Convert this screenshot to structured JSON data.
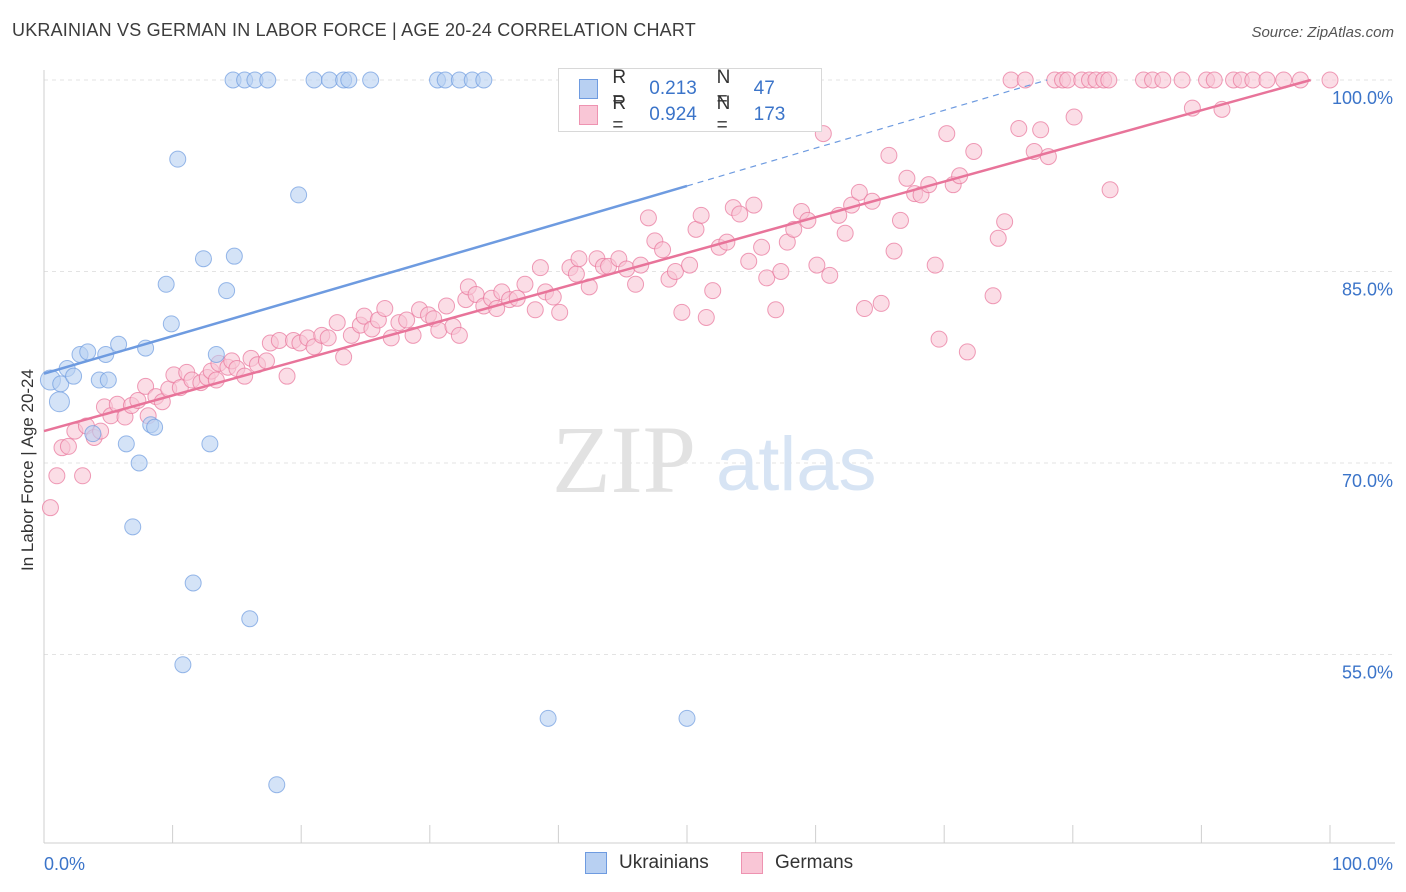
{
  "title": "UKRAINIAN VS GERMAN IN LABOR FORCE | AGE 20-24 CORRELATION CHART",
  "source": "Source: ZipAtlas.com",
  "watermark": {
    "zip": "ZIP",
    "atlas": "atlas"
  },
  "legend": {
    "r_label": "R =",
    "n_label": "N =",
    "rows": [
      {
        "r": "0.213",
        "n": "47",
        "fill": "#b8d0f2",
        "stroke": "#6e9be0"
      },
      {
        "r": "0.924",
        "n": "173",
        "fill": "#f9c6d6",
        "stroke": "#ee93b1"
      }
    ]
  },
  "bottom_legend": [
    {
      "label": "Ukrainians",
      "fill": "#b8d0f2",
      "stroke": "#6e9be0"
    },
    {
      "label": "Germans",
      "fill": "#f9c6d6",
      "stroke": "#ee93b1"
    }
  ],
  "chart_data": {
    "type": "scatter",
    "xlabel": "",
    "ylabel": "In Labor Force | Age 20-24",
    "xlim": [
      0,
      100
    ],
    "ylim": [
      40,
      101
    ],
    "x_tick_labels": [
      {
        "value": 0,
        "label": "0.0%"
      },
      {
        "value": 100,
        "label": "100.0%"
      }
    ],
    "y_tick_labels": [
      {
        "value": 100,
        "label": "100.0%"
      },
      {
        "value": 85,
        "label": "85.0%"
      },
      {
        "value": 70,
        "label": "70.0%"
      },
      {
        "value": 55,
        "label": "55.0%"
      }
    ],
    "grid": "horizontal dashed",
    "legend_position": "top-center",
    "series": [
      {
        "name": "Ukrainians",
        "color": "#6e9be0",
        "fill": "#b8d0f2",
        "trend": {
          "x0": 0,
          "y0": 77.0,
          "x1": 50,
          "y1": 91.7,
          "dashed_to_x": 78,
          "dashed_to_y": 100
        },
        "points": [
          [
            0.5,
            76.5
          ],
          [
            1.2,
            74.8
          ],
          [
            1.3,
            76.2
          ],
          [
            1.8,
            77.4
          ],
          [
            2.3,
            76.8
          ],
          [
            2.8,
            78.5
          ],
          [
            3.4,
            78.7
          ],
          [
            3.8,
            72.3
          ],
          [
            4.3,
            76.5
          ],
          [
            4.8,
            78.5
          ],
          [
            5.0,
            76.5
          ],
          [
            5.8,
            79.3
          ],
          [
            6.4,
            71.5
          ],
          [
            6.9,
            65.0
          ],
          [
            7.4,
            70.0
          ],
          [
            7.9,
            79.0
          ],
          [
            8.3,
            73.0
          ],
          [
            8.6,
            72.8
          ],
          [
            9.5,
            84.0
          ],
          [
            9.9,
            80.9
          ],
          [
            10.4,
            93.8
          ],
          [
            10.8,
            54.2
          ],
          [
            11.6,
            60.6
          ],
          [
            12.4,
            86.0
          ],
          [
            12.9,
            71.5
          ],
          [
            13.4,
            78.5
          ],
          [
            14.2,
            83.5
          ],
          [
            14.8,
            86.2
          ],
          [
            16.0,
            57.8
          ],
          [
            18.1,
            44.8
          ],
          [
            19.8,
            91.0
          ],
          [
            14.7,
            100
          ],
          [
            15.6,
            100
          ],
          [
            16.4,
            100
          ],
          [
            17.4,
            100
          ],
          [
            21.0,
            100
          ],
          [
            22.2,
            100
          ],
          [
            23.3,
            100
          ],
          [
            23.7,
            100
          ],
          [
            25.4,
            100
          ],
          [
            30.6,
            100
          ],
          [
            31.2,
            100
          ],
          [
            32.3,
            100
          ],
          [
            33.3,
            100
          ],
          [
            34.2,
            100
          ],
          [
            39.2,
            50.0
          ],
          [
            50.0,
            50.0
          ]
        ]
      },
      {
        "name": "Germans",
        "color": "#e8749a",
        "fill": "#f9c6d6",
        "trend": {
          "x0": 0,
          "y0": 72.5,
          "x1": 98.5,
          "y1": 100
        },
        "points": [
          [
            0.5,
            66.5
          ],
          [
            1.0,
            69.0
          ],
          [
            1.4,
            71.2
          ],
          [
            1.9,
            71.3
          ],
          [
            2.4,
            72.5
          ],
          [
            3.0,
            69.0
          ],
          [
            3.3,
            72.9
          ],
          [
            3.9,
            72.0
          ],
          [
            4.4,
            72.5
          ],
          [
            4.7,
            74.4
          ],
          [
            5.2,
            73.7
          ],
          [
            5.7,
            74.6
          ],
          [
            6.3,
            73.6
          ],
          [
            6.8,
            74.5
          ],
          [
            7.3,
            74.9
          ],
          [
            7.9,
            76.0
          ],
          [
            8.1,
            73.7
          ],
          [
            8.7,
            75.2
          ],
          [
            9.2,
            74.8
          ],
          [
            9.7,
            75.8
          ],
          [
            10.1,
            76.9
          ],
          [
            10.6,
            75.9
          ],
          [
            11.1,
            77.1
          ],
          [
            11.5,
            76.5
          ],
          [
            12.2,
            76.3
          ],
          [
            12.7,
            76.7
          ],
          [
            13.0,
            77.2
          ],
          [
            13.6,
            77.8
          ],
          [
            13.4,
            76.5
          ],
          [
            14.3,
            77.5
          ],
          [
            14.6,
            78.0
          ],
          [
            15.0,
            77.4
          ],
          [
            15.6,
            76.8
          ],
          [
            16.1,
            78.2
          ],
          [
            16.6,
            77.7
          ],
          [
            17.3,
            78.0
          ],
          [
            17.6,
            79.4
          ],
          [
            18.3,
            79.6
          ],
          [
            18.9,
            76.8
          ],
          [
            19.4,
            79.6
          ],
          [
            19.9,
            79.4
          ],
          [
            20.5,
            79.8
          ],
          [
            21.0,
            79.1
          ],
          [
            21.6,
            80.0
          ],
          [
            22.1,
            79.8
          ],
          [
            22.8,
            81.0
          ],
          [
            23.3,
            78.3
          ],
          [
            23.9,
            80.0
          ],
          [
            24.6,
            80.8
          ],
          [
            24.9,
            81.5
          ],
          [
            25.5,
            80.5
          ],
          [
            26.0,
            81.2
          ],
          [
            26.5,
            82.1
          ],
          [
            27.0,
            79.8
          ],
          [
            27.6,
            81.0
          ],
          [
            28.2,
            81.2
          ],
          [
            28.7,
            80.0
          ],
          [
            29.2,
            82.0
          ],
          [
            29.9,
            81.6
          ],
          [
            30.3,
            81.3
          ],
          [
            30.7,
            80.4
          ],
          [
            31.3,
            82.3
          ],
          [
            31.8,
            80.7
          ],
          [
            32.3,
            80.0
          ],
          [
            32.8,
            82.8
          ],
          [
            33.0,
            83.8
          ],
          [
            33.6,
            83.2
          ],
          [
            34.2,
            82.3
          ],
          [
            34.8,
            82.9
          ],
          [
            35.2,
            82.1
          ],
          [
            35.6,
            83.4
          ],
          [
            36.2,
            82.8
          ],
          [
            36.8,
            82.9
          ],
          [
            37.4,
            84.0
          ],
          [
            38.2,
            82.0
          ],
          [
            38.6,
            85.3
          ],
          [
            39.0,
            83.4
          ],
          [
            39.6,
            83.0
          ],
          [
            40.1,
            81.8
          ],
          [
            40.9,
            85.3
          ],
          [
            41.4,
            84.8
          ],
          [
            41.6,
            86.0
          ],
          [
            42.4,
            83.8
          ],
          [
            43.0,
            86.0
          ],
          [
            43.5,
            85.4
          ],
          [
            43.9,
            85.4
          ],
          [
            44.7,
            86.0
          ],
          [
            45.3,
            85.2
          ],
          [
            46.0,
            84.0
          ],
          [
            46.4,
            85.5
          ],
          [
            47.0,
            89.2
          ],
          [
            47.5,
            87.4
          ],
          [
            48.1,
            86.7
          ],
          [
            48.6,
            84.4
          ],
          [
            49.1,
            85.0
          ],
          [
            49.6,
            81.8
          ],
          [
            50.2,
            85.5
          ],
          [
            50.7,
            88.3
          ],
          [
            51.1,
            89.4
          ],
          [
            51.5,
            81.4
          ],
          [
            52.0,
            83.5
          ],
          [
            52.5,
            86.9
          ],
          [
            53.1,
            87.3
          ],
          [
            53.6,
            90.0
          ],
          [
            54.1,
            89.5
          ],
          [
            54.8,
            85.8
          ],
          [
            55.2,
            90.2
          ],
          [
            55.8,
            86.9
          ],
          [
            56.2,
            84.5
          ],
          [
            56.9,
            82.0
          ],
          [
            57.3,
            85.0
          ],
          [
            57.8,
            87.3
          ],
          [
            58.3,
            88.3
          ],
          [
            58.9,
            89.7
          ],
          [
            59.4,
            89.0
          ],
          [
            60.1,
            85.5
          ],
          [
            60.6,
            95.8
          ],
          [
            61.1,
            84.7
          ],
          [
            61.8,
            89.4
          ],
          [
            62.3,
            88.0
          ],
          [
            62.8,
            90.2
          ],
          [
            63.4,
            91.2
          ],
          [
            63.8,
            82.1
          ],
          [
            64.4,
            90.5
          ],
          [
            65.1,
            82.5
          ],
          [
            65.7,
            94.1
          ],
          [
            66.1,
            86.6
          ],
          [
            66.6,
            89.0
          ],
          [
            67.1,
            92.3
          ],
          [
            67.7,
            91.1
          ],
          [
            68.2,
            91.0
          ],
          [
            68.8,
            91.8
          ],
          [
            69.3,
            85.5
          ],
          [
            69.6,
            79.7
          ],
          [
            70.2,
            95.8
          ],
          [
            70.7,
            91.8
          ],
          [
            71.2,
            92.5
          ],
          [
            71.8,
            78.7
          ],
          [
            72.3,
            94.4
          ],
          [
            73.8,
            83.1
          ],
          [
            74.2,
            87.6
          ],
          [
            74.7,
            88.9
          ],
          [
            75.2,
            100
          ],
          [
            75.8,
            96.2
          ],
          [
            76.3,
            100
          ],
          [
            77.0,
            94.4
          ],
          [
            77.5,
            96.1
          ],
          [
            78.1,
            94.0
          ],
          [
            78.6,
            100
          ],
          [
            79.2,
            100
          ],
          [
            79.6,
            100
          ],
          [
            80.1,
            97.1
          ],
          [
            80.7,
            100
          ],
          [
            81.3,
            100
          ],
          [
            81.8,
            100
          ],
          [
            82.4,
            100
          ],
          [
            82.8,
            100
          ],
          [
            82.9,
            91.4
          ],
          [
            85.5,
            100
          ],
          [
            86.2,
            100
          ],
          [
            87.0,
            100
          ],
          [
            88.5,
            100
          ],
          [
            89.3,
            97.8
          ],
          [
            90.4,
            100
          ],
          [
            91.0,
            100
          ],
          [
            91.6,
            97.7
          ],
          [
            92.5,
            100
          ],
          [
            93.1,
            100
          ],
          [
            94.0,
            100
          ],
          [
            95.1,
            100
          ],
          [
            96.4,
            100
          ],
          [
            97.7,
            100
          ],
          [
            100.0,
            100
          ]
        ]
      }
    ]
  }
}
